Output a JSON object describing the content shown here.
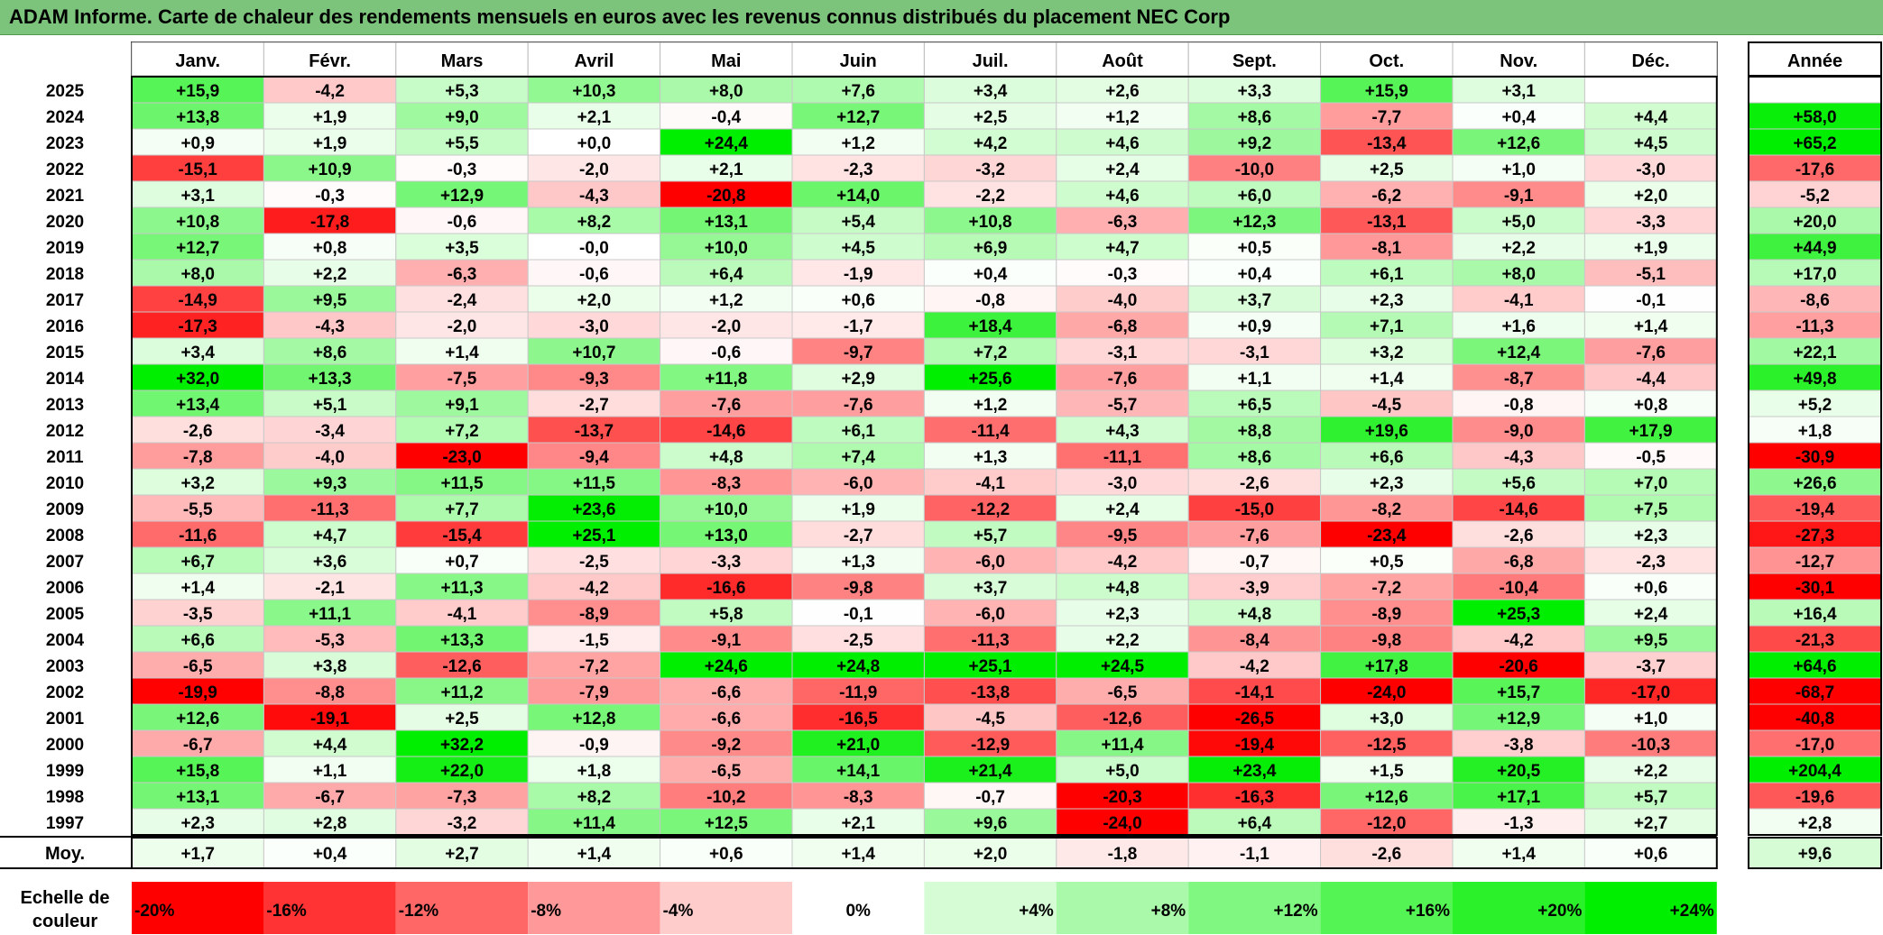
{
  "title": "ADAM Informe. Carte de chaleur des rendements mensuels en euros avec les revenus connus distribués du placement NEC Corp",
  "chart_data": {
    "type": "heatmap",
    "months": [
      "Janv.",
      "Févr.",
      "Mars",
      "Avril",
      "Mai",
      "Juin",
      "Juil.",
      "Août",
      "Sept.",
      "Oct.",
      "Nov.",
      "Déc."
    ],
    "year_header": "Année",
    "rows": [
      {
        "year": "2025",
        "values": [
          "+15,9",
          "-4,2",
          "+5,3",
          "+10,3",
          "+8,0",
          "+7,6",
          "+3,4",
          "+2,6",
          "+3,3",
          "+15,9",
          "+3,1",
          ""
        ],
        "annual": ""
      },
      {
        "year": "2024",
        "values": [
          "+13,8",
          "+1,9",
          "+9,0",
          "+2,1",
          "-0,4",
          "+12,7",
          "+2,5",
          "+1,2",
          "+8,6",
          "-7,7",
          "+0,4",
          "+4,4"
        ],
        "annual": "+58,0"
      },
      {
        "year": "2023",
        "values": [
          "+0,9",
          "+1,9",
          "+5,5",
          "+0,0",
          "+24,4",
          "+1,2",
          "+4,2",
          "+4,6",
          "+9,2",
          "-13,4",
          "+12,6",
          "+4,5"
        ],
        "annual": "+65,2"
      },
      {
        "year": "2022",
        "values": [
          "-15,1",
          "+10,9",
          "-0,3",
          "-2,0",
          "+2,1",
          "-2,3",
          "-3,2",
          "+2,4",
          "-10,0",
          "+2,5",
          "+1,0",
          "-3,0"
        ],
        "annual": "-17,6"
      },
      {
        "year": "2021",
        "values": [
          "+3,1",
          "-0,3",
          "+12,9",
          "-4,3",
          "-20,8",
          "+14,0",
          "-2,2",
          "+4,6",
          "+6,0",
          "-6,2",
          "-9,1",
          "+2,0"
        ],
        "annual": "-5,2"
      },
      {
        "year": "2020",
        "values": [
          "+10,8",
          "-17,8",
          "-0,6",
          "+8,2",
          "+13,1",
          "+5,4",
          "+10,8",
          "-6,3",
          "+12,3",
          "-13,1",
          "+5,0",
          "-3,3"
        ],
        "annual": "+20,0"
      },
      {
        "year": "2019",
        "values": [
          "+12,7",
          "+0,8",
          "+3,5",
          "-0,0",
          "+10,0",
          "+4,5",
          "+6,9",
          "+4,7",
          "+0,5",
          "-8,1",
          "+2,2",
          "+1,9"
        ],
        "annual": "+44,9"
      },
      {
        "year": "2018",
        "values": [
          "+8,0",
          "+2,2",
          "-6,3",
          "-0,6",
          "+6,4",
          "-1,9",
          "+0,4",
          "-0,3",
          "+0,4",
          "+6,1",
          "+8,0",
          "-5,1"
        ],
        "annual": "+17,0"
      },
      {
        "year": "2017",
        "values": [
          "-14,9",
          "+9,5",
          "-2,4",
          "+2,0",
          "+1,2",
          "+0,6",
          "-0,8",
          "-4,0",
          "+3,7",
          "+2,3",
          "-4,1",
          "-0,1"
        ],
        "annual": "-8,6"
      },
      {
        "year": "2016",
        "values": [
          "-17,3",
          "-4,3",
          "-2,0",
          "-3,0",
          "-2,0",
          "-1,7",
          "+18,4",
          "-6,8",
          "+0,9",
          "+7,1",
          "+1,6",
          "+1,4"
        ],
        "annual": "-11,3"
      },
      {
        "year": "2015",
        "values": [
          "+3,4",
          "+8,6",
          "+1,4",
          "+10,7",
          "-0,6",
          "-9,7",
          "+7,2",
          "-3,1",
          "-3,1",
          "+3,2",
          "+12,4",
          "-7,6"
        ],
        "annual": "+22,1"
      },
      {
        "year": "2014",
        "values": [
          "+32,0",
          "+13,3",
          "-7,5",
          "-9,3",
          "+11,8",
          "+2,9",
          "+25,6",
          "-7,6",
          "+1,1",
          "+1,4",
          "-8,7",
          "-4,4"
        ],
        "annual": "+49,8"
      },
      {
        "year": "2013",
        "values": [
          "+13,4",
          "+5,1",
          "+9,1",
          "-2,7",
          "-7,6",
          "-7,6",
          "+1,2",
          "-5,7",
          "+6,5",
          "-4,5",
          "-0,8",
          "+0,8"
        ],
        "annual": "+5,2"
      },
      {
        "year": "2012",
        "values": [
          "-2,6",
          "-3,4",
          "+7,2",
          "-13,7",
          "-14,6",
          "+6,1",
          "-11,4",
          "+4,3",
          "+8,8",
          "+19,6",
          "-9,0",
          "+17,9"
        ],
        "annual": "+1,8"
      },
      {
        "year": "2011",
        "values": [
          "-7,8",
          "-4,0",
          "-23,0",
          "-9,4",
          "+4,8",
          "+7,4",
          "+1,3",
          "-11,1",
          "+8,6",
          "+6,6",
          "-4,3",
          "-0,5"
        ],
        "annual": "-30,9"
      },
      {
        "year": "2010",
        "values": [
          "+3,2",
          "+9,3",
          "+11,5",
          "+11,5",
          "-8,3",
          "-6,0",
          "-4,1",
          "-3,0",
          "-2,6",
          "+2,3",
          "+5,6",
          "+7,0"
        ],
        "annual": "+26,6"
      },
      {
        "year": "2009",
        "values": [
          "-5,5",
          "-11,3",
          "+7,7",
          "+23,6",
          "+10,0",
          "+1,9",
          "-12,2",
          "+2,4",
          "-15,0",
          "-8,2",
          "-14,6",
          "+7,5"
        ],
        "annual": "-19,4"
      },
      {
        "year": "2008",
        "values": [
          "-11,6",
          "+4,7",
          "-15,4",
          "+25,1",
          "+13,0",
          "-2,7",
          "+5,7",
          "-9,5",
          "-7,6",
          "-23,4",
          "-2,6",
          "+2,3"
        ],
        "annual": "-27,3"
      },
      {
        "year": "2007",
        "values": [
          "+6,7",
          "+3,6",
          "+0,7",
          "-2,5",
          "-3,3",
          "+1,3",
          "-6,0",
          "-4,2",
          "-0,7",
          "+0,5",
          "-6,8",
          "-2,3"
        ],
        "annual": "-12,7"
      },
      {
        "year": "2006",
        "values": [
          "+1,4",
          "-2,1",
          "+11,3",
          "-4,2",
          "-16,6",
          "-9,8",
          "+3,7",
          "+4,8",
          "-3,9",
          "-7,2",
          "-10,4",
          "+0,6"
        ],
        "annual": "-30,1"
      },
      {
        "year": "2005",
        "values": [
          "-3,5",
          "+11,1",
          "-4,1",
          "-8,9",
          "+5,8",
          "-0,1",
          "-6,0",
          "+2,3",
          "+4,8",
          "-8,9",
          "+25,3",
          "+2,4"
        ],
        "annual": "+16,4"
      },
      {
        "year": "2004",
        "values": [
          "+6,6",
          "-5,3",
          "+13,3",
          "-1,5",
          "-9,1",
          "-2,5",
          "-11,3",
          "+2,2",
          "-8,4",
          "-9,8",
          "-4,2",
          "+9,5"
        ],
        "annual": "-21,3"
      },
      {
        "year": "2003",
        "values": [
          "-6,5",
          "+3,8",
          "-12,6",
          "-7,2",
          "+24,6",
          "+24,8",
          "+25,1",
          "+24,5",
          "-4,2",
          "+17,8",
          "-20,6",
          "-3,7"
        ],
        "annual": "+64,6"
      },
      {
        "year": "2002",
        "values": [
          "-19,9",
          "-8,8",
          "+11,2",
          "-7,9",
          "-6,6",
          "-11,9",
          "-13,8",
          "-6,5",
          "-14,1",
          "-24,0",
          "+15,7",
          "-17,0"
        ],
        "annual": "-68,7"
      },
      {
        "year": "2001",
        "values": [
          "+12,6",
          "-19,1",
          "+2,5",
          "+12,8",
          "-6,6",
          "-16,5",
          "-4,5",
          "-12,6",
          "-26,5",
          "+3,0",
          "+12,9",
          "+1,0"
        ],
        "annual": "-40,8"
      },
      {
        "year": "2000",
        "values": [
          "-6,7",
          "+4,4",
          "+32,2",
          "-0,9",
          "-9,2",
          "+21,0",
          "-12,9",
          "+11,4",
          "-19,4",
          "-12,5",
          "-3,8",
          "-10,3"
        ],
        "annual": "-17,0"
      },
      {
        "year": "1999",
        "values": [
          "+15,8",
          "+1,1",
          "+22,0",
          "+1,8",
          "-6,5",
          "+14,1",
          "+21,4",
          "+5,0",
          "+23,4",
          "+1,5",
          "+20,5",
          "+2,2"
        ],
        "annual": "+204,4"
      },
      {
        "year": "1998",
        "values": [
          "+13,1",
          "-6,7",
          "-7,3",
          "+8,2",
          "-10,2",
          "-8,3",
          "-0,7",
          "-20,3",
          "-16,3",
          "+12,6",
          "+17,1",
          "+5,7"
        ],
        "annual": "-19,6"
      },
      {
        "year": "1997",
        "values": [
          "+2,3",
          "+2,8",
          "-3,2",
          "+11,4",
          "+12,5",
          "+2,1",
          "+9,6",
          "-24,0",
          "+6,4",
          "-12,0",
          "-1,3",
          "+2,7"
        ],
        "annual": "+2,8"
      }
    ],
    "average": {
      "label": "Moy.",
      "values": [
        "+1,7",
        "+0,4",
        "+2,7",
        "+1,4",
        "+0,6",
        "+1,4",
        "+2,0",
        "-1,8",
        "-1,1",
        "-2,6",
        "+1,4",
        "+0,6"
      ],
      "annual": "+9,6"
    },
    "scale": {
      "label_line1": "Echelle de",
      "label_line2": "couleur",
      "steps": [
        "-20%",
        "-16%",
        "-12%",
        "-8%",
        "-4%",
        "0%",
        "+4%",
        "+8%",
        "+12%",
        "+16%",
        "+20%",
        "+24%"
      ]
    },
    "colors": {
      "title_bar": "#7cc47c",
      "negative_max": "#ff0000",
      "positive_max": "#00ee00",
      "neutral": "#ffffff"
    }
  }
}
